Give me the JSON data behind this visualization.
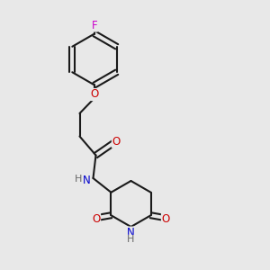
{
  "bg_color": "#e8e8e8",
  "bond_color": "#1a1a1a",
  "bond_lw": 1.5,
  "atom_colors": {
    "F": "#cc00cc",
    "O": "#cc0000",
    "N": "#0000cc",
    "H_gray": "#666666"
  },
  "font_size": 8.5,
  "font_size_small": 7.5
}
